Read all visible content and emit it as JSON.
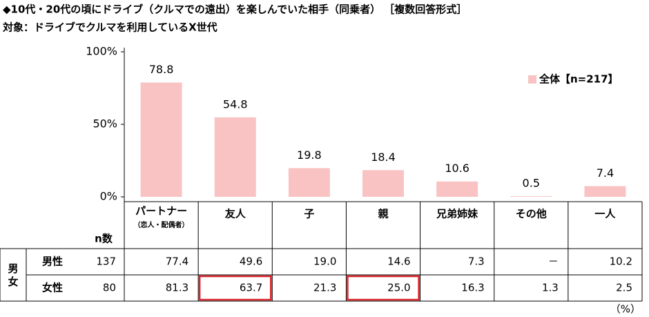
{
  "chart_data": {
    "type": "bar",
    "title": "◆10代・20代の頃にドライブ（クルマでの遠出）を楽しんでいた相手（同乗者） ［複数回答形式］",
    "subtitle": "対象：ドライブでクルマを利用しているX世代",
    "categories": [
      "パートナー",
      "友人",
      "子",
      "親",
      "兄弟姉妹",
      "その他",
      "一人"
    ],
    "category_sublabels": [
      "（恋人・配偶者）",
      null,
      null,
      null,
      null,
      null,
      null
    ],
    "series": [
      {
        "name": "全体【n=217】",
        "color": "#f9c3c3",
        "values": [
          78.8,
          54.8,
          19.8,
          18.4,
          10.6,
          0.5,
          7.4
        ]
      }
    ],
    "ylim": [
      0,
      100
    ],
    "yticks": [
      {
        "value": 0,
        "label": "0%"
      },
      {
        "value": 50,
        "label": "50%"
      },
      {
        "value": 100,
        "label": "100%"
      }
    ],
    "grid": false,
    "legend": "top-right"
  },
  "table": {
    "n_header": "n数",
    "group_label": "男女",
    "unit": "（%）",
    "rows": [
      {
        "label": "男性",
        "n": "137",
        "values": [
          "77.4",
          "49.6",
          "19.0",
          "14.6",
          "7.3",
          "－",
          "10.2"
        ]
      },
      {
        "label": "女性",
        "n": "80",
        "values": [
          "81.3",
          "63.7",
          "21.3",
          "25.0",
          "16.3",
          "1.3",
          "2.5"
        ]
      }
    ],
    "highlight_color": "#d9262c",
    "highlighted_cells": [
      {
        "row": 1,
        "col": 1
      },
      {
        "row": 1,
        "col": 3
      }
    ]
  }
}
